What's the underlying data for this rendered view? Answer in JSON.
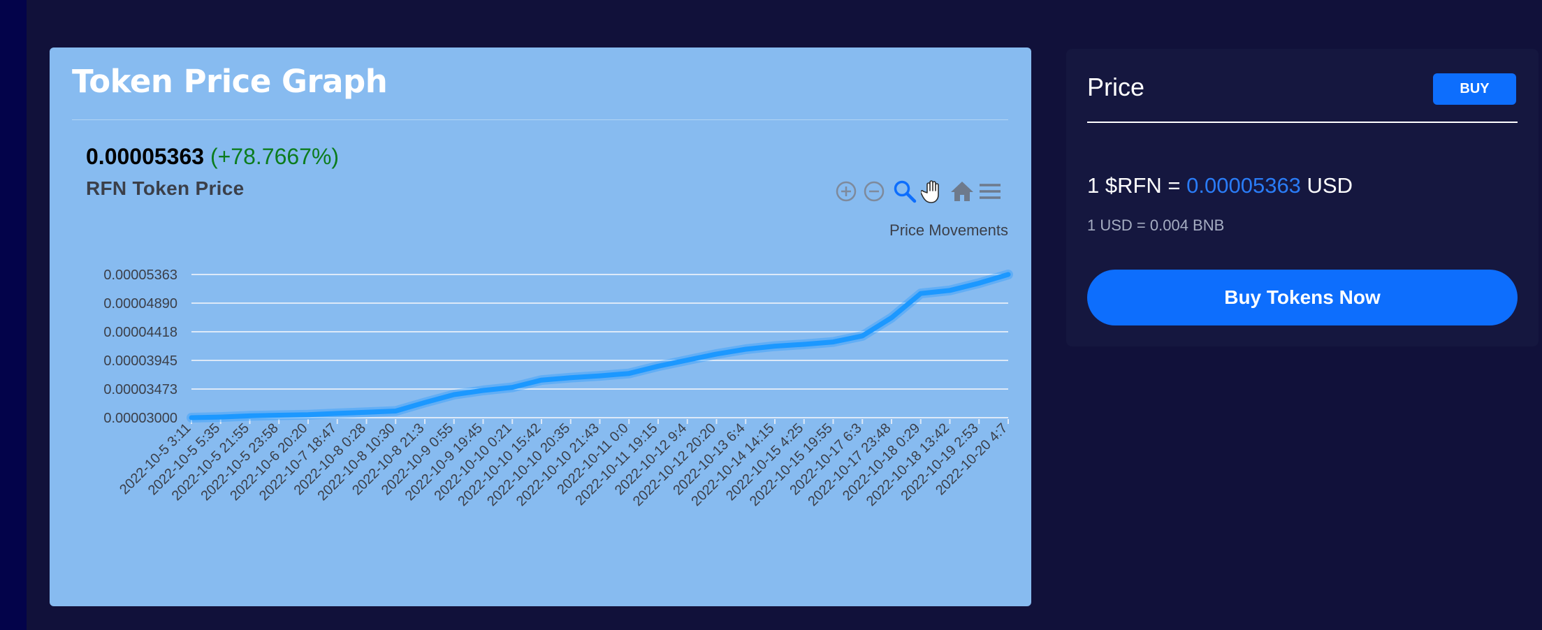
{
  "graph_card": {
    "title": "Token Price Graph",
    "current_price": "0.00005363",
    "price_change": "(+78.7667%)",
    "subtitle": "RFN Token Price",
    "toolbar": [
      {
        "name": "zoom-in-icon",
        "glyph": "⊕",
        "color": "#7e8a9c"
      },
      {
        "name": "zoom-out-icon",
        "glyph": "⊖",
        "color": "#7e8a9c"
      },
      {
        "name": "selection-zoom-icon",
        "glyph": "magnifier",
        "color": "#0d6efd"
      },
      {
        "name": "pan-hand-icon",
        "glyph": "hand",
        "color": "#ffffff"
      },
      {
        "name": "reset-home-icon",
        "glyph": "home",
        "color": "#6e7a8c"
      },
      {
        "name": "chart-menu-icon",
        "glyph": "menu",
        "color": "#6e7a8c"
      }
    ]
  },
  "chart_data": {
    "type": "line",
    "title": "Price Movements",
    "xlabel": "",
    "ylabel": "",
    "y_ticks": [
      "0.00003000",
      "0.00003473",
      "0.00003945",
      "0.00004418",
      "0.00004890",
      "0.00005363"
    ],
    "ylim": [
      3e-05,
      5.363e-05
    ],
    "grid": true,
    "line_color": "#1c98ff",
    "categories": [
      "2022-10-5 3:11",
      "2022-10-5 5:35",
      "2022-10-5 21:55",
      "2022-10-5 23:58",
      "2022-10-6 20:20",
      "2022-10-7 18:47",
      "2022-10-8 0:28",
      "2022-10-8 10:30",
      "2022-10-8 21:3",
      "2022-10-9 0:55",
      "2022-10-9 19:45",
      "2022-10-10 0:21",
      "2022-10-10 15:42",
      "2022-10-10 20:35",
      "2022-10-10 21:43",
      "2022-10-11 0:0",
      "2022-10-11 19:15",
      "2022-10-12 9:4",
      "2022-10-12 20:20",
      "2022-10-13 6:4",
      "2022-10-14 14:15",
      "2022-10-15 4:25",
      "2022-10-15 19:55",
      "2022-10-17 6:3",
      "2022-10-17 23:48",
      "2022-10-18 0:29",
      "2022-10-18 13:42",
      "2022-10-19 2:53",
      "2022-10-20 4:7"
    ],
    "series": [
      {
        "values": [
          3e-05,
          3.01e-05,
          3.03e-05,
          3.04e-05,
          3.05e-05,
          3.07e-05,
          3.09e-05,
          3.11e-05,
          3.25e-05,
          3.38e-05,
          3.45e-05,
          3.5e-05,
          3.62e-05,
          3.66e-05,
          3.69e-05,
          3.73e-05,
          3.85e-05,
          3.95e-05,
          4.05e-05,
          4.13e-05,
          4.18e-05,
          4.21e-05,
          4.25e-05,
          4.35e-05,
          4.65e-05,
          5.05e-05,
          5.1e-05,
          5.22e-05,
          5.363e-05
        ]
      }
    ]
  },
  "price_card": {
    "heading": "Price",
    "buy_label": "BUY",
    "rate_prefix": "1 $RFN = ",
    "rate_value": "0.00005363",
    "rate_suffix": " USD",
    "bnb_rate": "1 USD = 0.004 BNB",
    "buy_tokens_label": "Buy Tokens Now"
  }
}
